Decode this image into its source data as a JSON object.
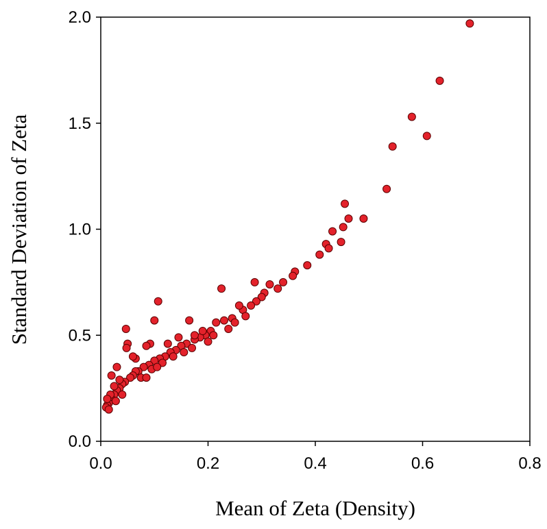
{
  "chart_data": {
    "type": "scatter",
    "x_label": "Mean of Zeta (Density)",
    "y_label": "Standard Deviation of Zeta",
    "color": "#e3222b",
    "xlim": [
      0,
      0.8
    ],
    "xticks": [
      {
        "value": 0,
        "label": "0.0"
      },
      0.2,
      0.4,
      0.6,
      0.8
    ],
    "ylim": [
      0,
      2
    ],
    "yticks": [
      {
        "value": 0,
        "label": "0.0"
      },
      0.5,
      {
        "value": 1,
        "label": "1.0"
      },
      1.5,
      {
        "value": 2,
        "label": "2.0"
      }
    ],
    "grid": false,
    "x": [
      0.688,
      0.632,
      0.58,
      0.608,
      0.544,
      0.533,
      0.455,
      0.49,
      0.462,
      0.452,
      0.432,
      0.448,
      0.42,
      0.425,
      0.408,
      0.385,
      0.362,
      0.358,
      0.34,
      0.315,
      0.33,
      0.305,
      0.287,
      0.225,
      0.3,
      0.29,
      0.28,
      0.265,
      0.258,
      0.245,
      0.23,
      0.215,
      0.238,
      0.205,
      0.195,
      0.185,
      0.175,
      0.165,
      0.16,
      0.15,
      0.14,
      0.13,
      0.12,
      0.11,
      0.107,
      0.1,
      0.1,
      0.09,
      0.092,
      0.085,
      0.08,
      0.07,
      0.065,
      0.06,
      0.047,
      0.05,
      0.048,
      0.055,
      0.045,
      0.04,
      0.035,
      0.03,
      0.025,
      0.02,
      0.015,
      0.012,
      0.01,
      0.015,
      0.03,
      0.02,
      0.065,
      0.06,
      0.125,
      0.135,
      0.2,
      0.19,
      0.175,
      0.145,
      0.115,
      0.075,
      0.095,
      0.105,
      0.155,
      0.17,
      0.21,
      0.25,
      0.27,
      0.035,
      0.025,
      0.018,
      0.012,
      0.085,
      0.04,
      0.028
    ],
    "values": [
      1.97,
      1.7,
      1.53,
      1.44,
      1.39,
      1.19,
      1.12,
      1.05,
      1.05,
      1.01,
      0.99,
      0.94,
      0.93,
      0.91,
      0.88,
      0.83,
      0.8,
      0.78,
      0.75,
      0.74,
      0.72,
      0.7,
      0.75,
      0.72,
      0.68,
      0.66,
      0.64,
      0.62,
      0.64,
      0.58,
      0.57,
      0.56,
      0.53,
      0.52,
      0.5,
      0.49,
      0.48,
      0.57,
      0.46,
      0.45,
      0.43,
      0.42,
      0.4,
      0.39,
      0.66,
      0.57,
      0.38,
      0.36,
      0.46,
      0.45,
      0.35,
      0.33,
      0.33,
      0.31,
      0.53,
      0.46,
      0.44,
      0.3,
      0.28,
      0.27,
      0.25,
      0.24,
      0.22,
      0.2,
      0.18,
      0.17,
      0.16,
      0.15,
      0.35,
      0.31,
      0.39,
      0.4,
      0.46,
      0.4,
      0.47,
      0.52,
      0.5,
      0.49,
      0.37,
      0.3,
      0.34,
      0.35,
      0.42,
      0.44,
      0.5,
      0.56,
      0.59,
      0.29,
      0.26,
      0.22,
      0.2,
      0.3,
      0.22,
      0.19
    ]
  }
}
